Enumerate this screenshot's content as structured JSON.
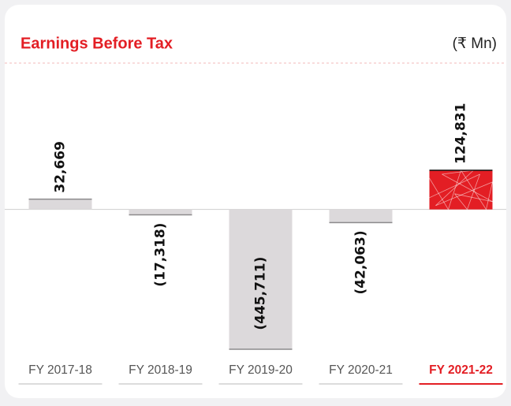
{
  "chart_data": {
    "type": "bar",
    "title": "Earnings Before Tax",
    "unit": "(₹ Mn)",
    "categories": [
      "FY 2017-18",
      "FY 2018-19",
      "FY 2019-20",
      "FY 2020-21",
      "FY 2021-22"
    ],
    "values": [
      32669,
      -17318,
      -445711,
      -42063,
      124831
    ],
    "value_labels": [
      "32,669",
      "(17,318)",
      "(445,711)",
      "(42,063)",
      "124,831"
    ],
    "colors": [
      "#dcd9db",
      "#dcd9db",
      "#dcd9db",
      "#dcd9db",
      "#e31e24"
    ]
  }
}
